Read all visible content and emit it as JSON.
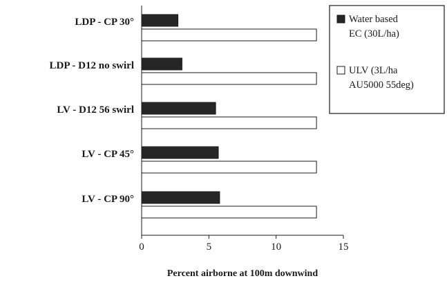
{
  "chart_data": {
    "type": "bar",
    "orientation": "horizontal",
    "categories": [
      "LDP - CP 30°",
      "LDP - D12 no swirl",
      "LV - D12 56 swirl",
      "LV - CP 45°",
      "LV - CP 90°"
    ],
    "series": [
      {
        "name": "Water based EC (30L/ha)",
        "legend_lines": [
          "Water based",
          "EC (30L/ha)"
        ],
        "color": "#262626",
        "values": [
          2.7,
          3.0,
          5.5,
          5.7,
          5.8
        ]
      },
      {
        "name": "ULV (3L/ha AU5000 55deg)",
        "legend_lines": [
          "ULV (3L/ha",
          "AU5000 55deg)"
        ],
        "color": "#ffffff",
        "values": [
          13,
          13,
          13,
          13,
          13
        ]
      }
    ],
    "xlabel": "Percent airborne at 100m downwind",
    "xlim": [
      0,
      15
    ],
    "xticks": [
      "0",
      "5",
      "10",
      "15"
    ],
    "legend_position": "top-right",
    "grid": false
  }
}
